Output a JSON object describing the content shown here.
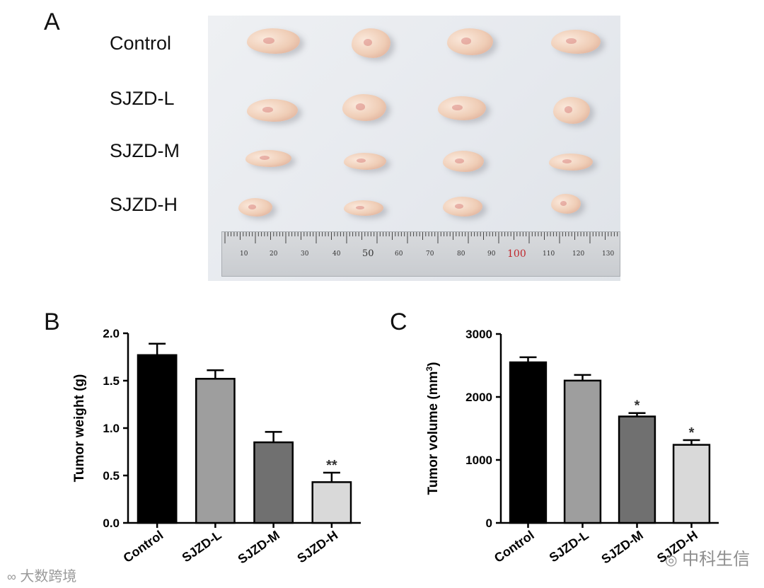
{
  "panel_a": {
    "letter": "A",
    "row_labels": [
      "Control",
      "SJZD-L",
      "SJZD-M",
      "SJZD-H"
    ],
    "ruler_numbers": [
      "10",
      "20",
      "30",
      "40",
      "50",
      "60",
      "70",
      "80",
      "90",
      "100",
      "110",
      "120",
      "130"
    ]
  },
  "panel_b": {
    "letter": "B"
  },
  "panel_c": {
    "letter": "C"
  },
  "watermarks": {
    "left": "大数跨境",
    "right": "中科生信"
  },
  "chart_data": [
    {
      "type": "bar",
      "title": "",
      "xlabel": "",
      "ylabel": "Tumor weight (g)",
      "categories": [
        "Control",
        "SJZD-L",
        "SJZD-M",
        "SJZD-H"
      ],
      "values": [
        1.77,
        1.52,
        0.85,
        0.43
      ],
      "errors": [
        0.12,
        0.09,
        0.11,
        0.1
      ],
      "significance": [
        "",
        "",
        "",
        "**"
      ],
      "bar_colors": [
        "#000000",
        "#9e9e9e",
        "#707070",
        "#d9d9d9"
      ],
      "ylim": [
        0,
        2.0
      ],
      "yticks": [
        "0.0",
        "0.5",
        "1.0",
        "1.5",
        "2.0"
      ],
      "ytick_values": [
        0,
        0.5,
        1.0,
        1.5,
        2.0
      ]
    },
    {
      "type": "bar",
      "title": "",
      "xlabel": "",
      "ylabel": "Tumor volume (mm",
      "ylabel_sup": "3",
      "ylabel_end": ")",
      "categories": [
        "Control",
        "SJZD-L",
        "SJZD-M",
        "SJZD-H"
      ],
      "values": [
        2550,
        2260,
        1690,
        1240
      ],
      "errors": [
        80,
        90,
        55,
        75
      ],
      "significance": [
        "",
        "",
        "*",
        "*"
      ],
      "bar_colors": [
        "#000000",
        "#9e9e9e",
        "#707070",
        "#d9d9d9"
      ],
      "ylim": [
        0,
        3000
      ],
      "yticks": [
        "0",
        "1000",
        "2000",
        "3000"
      ],
      "ytick_values": [
        0,
        1000,
        2000,
        3000
      ]
    }
  ]
}
